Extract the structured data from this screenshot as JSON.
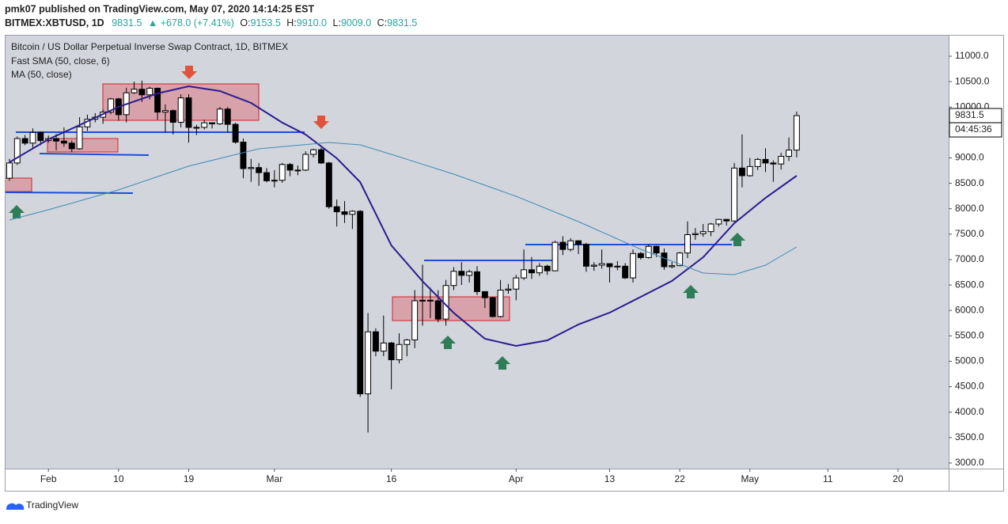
{
  "header": {
    "publisher": "pmk07 published on TradingView.com, May 07, 2020 14:14:25 EST",
    "symbol": "BITMEX:XBTUSD, 1D",
    "last": "9831.5",
    "change": "▲ +678.0 (+7.41%)",
    "o_label": "O:",
    "o": "9153.5",
    "h_label": "H:",
    "h": "9910.0",
    "l_label": "L:",
    "l": "9009.0",
    "c_label": "C:",
    "c": "9831.5"
  },
  "footer": {
    "brand": "TradingView"
  },
  "chart_data": {
    "type": "candlestick",
    "title": "Bitcoin / US Dollar Perpetual Inverse Swap Contract, 1D, BITMEX",
    "x": [
      "2020-01-27",
      "2020-01-28",
      "2020-01-29",
      "2020-01-30",
      "2020-01-31",
      "2020-02-01",
      "2020-02-02",
      "2020-02-03",
      "2020-02-04",
      "2020-02-05",
      "2020-02-06",
      "2020-02-07",
      "2020-02-08",
      "2020-02-09",
      "2020-02-10",
      "2020-02-11",
      "2020-02-12",
      "2020-02-13",
      "2020-02-14",
      "2020-02-15",
      "2020-02-16",
      "2020-02-17",
      "2020-02-18",
      "2020-02-19",
      "2020-02-20",
      "2020-02-21",
      "2020-02-22",
      "2020-02-23",
      "2020-02-24",
      "2020-02-25",
      "2020-02-26",
      "2020-02-27",
      "2020-02-28",
      "2020-02-29",
      "2020-03-01",
      "2020-03-02",
      "2020-03-03",
      "2020-03-04",
      "2020-03-05",
      "2020-03-06",
      "2020-03-07",
      "2020-03-08",
      "2020-03-09",
      "2020-03-10",
      "2020-03-11",
      "2020-03-12",
      "2020-03-13",
      "2020-03-14",
      "2020-03-15",
      "2020-03-16",
      "2020-03-17",
      "2020-03-18",
      "2020-03-19",
      "2020-03-20",
      "2020-03-21",
      "2020-03-22",
      "2020-03-23",
      "2020-03-24",
      "2020-03-25",
      "2020-03-26",
      "2020-03-27",
      "2020-03-28",
      "2020-03-29",
      "2020-03-30",
      "2020-03-31",
      "2020-04-01",
      "2020-04-02",
      "2020-04-03",
      "2020-04-04",
      "2020-04-05",
      "2020-04-06",
      "2020-04-07",
      "2020-04-08",
      "2020-04-09",
      "2020-04-10",
      "2020-04-11",
      "2020-04-12",
      "2020-04-13",
      "2020-04-14",
      "2020-04-15",
      "2020-04-16",
      "2020-04-17",
      "2020-04-18",
      "2020-04-19",
      "2020-04-20",
      "2020-04-21",
      "2020-04-22",
      "2020-04-23",
      "2020-04-24",
      "2020-04-25",
      "2020-04-26",
      "2020-04-27",
      "2020-04-28",
      "2020-04-29",
      "2020-04-30",
      "2020-05-01",
      "2020-05-02",
      "2020-05-03",
      "2020-05-04",
      "2020-05-05",
      "2020-05-06",
      "2020-05-07"
    ],
    "open": [
      8600,
      8900,
      9380,
      9290,
      9500,
      9340,
      9380,
      9330,
      9290,
      9180,
      9610,
      9760,
      9800,
      9900,
      10160,
      9850,
      10280,
      10350,
      10240,
      10370,
      9900,
      9930,
      9700,
      10180,
      9600,
      9600,
      9690,
      9670,
      9960,
      9660,
      9310,
      8790,
      8810,
      8710,
      8550,
      8560,
      8870,
      8760,
      8760,
      9070,
      9160,
      8900,
      8040,
      7940,
      7890,
      7950,
      4360,
      5580,
      5200,
      5360,
      5030,
      5330,
      5420,
      6190,
      6200,
      6190,
      5830,
      6490,
      6770,
      6690,
      6760,
      6370,
      6250,
      5880,
      6400,
      6420,
      6640,
      6800,
      6740,
      6870,
      6780,
      7340,
      7200,
      7370,
      7300,
      6870,
      6890,
      6920,
      6860,
      6870,
      6640,
      7120,
      7040,
      7260,
      7130,
      6860,
      6880,
      7130,
      7490,
      7510,
      7550,
      7700,
      7790,
      7760,
      8800,
      8650,
      8830,
      8970,
      8900,
      8880,
      9030,
      9153.5
    ],
    "high": [
      8980,
      9420,
      9450,
      9580,
      9520,
      9440,
      9470,
      9600,
      9340,
      9800,
      9850,
      9880,
      9950,
      10180,
      10180,
      10380,
      10500,
      10520,
      10400,
      10380,
      10050,
      9950,
      10250,
      10250,
      9650,
      9750,
      9700,
      10000,
      10000,
      9690,
      9380,
      8980,
      8900,
      8800,
      8760,
      8900,
      8900,
      8850,
      9130,
      9180,
      9200,
      8920,
      8180,
      8150,
      7970,
      7970,
      5950,
      5650,
      5900,
      5380,
      5550,
      5440,
      6400,
      6900,
      6450,
      6400,
      6600,
      6850,
      6950,
      6800,
      6870,
      6380,
      6270,
      6600,
      6520,
      6700,
      7200,
      7050,
      6930,
      6900,
      7370,
      7460,
      7420,
      7380,
      7330,
      6950,
      7200,
      6930,
      6970,
      6930,
      7200,
      7150,
      7300,
      7270,
      7220,
      6950,
      7150,
      7750,
      7620,
      7700,
      7720,
      7800,
      7800,
      8900,
      9460,
      9000,
      9000,
      9190,
      8950,
      9100,
      9400,
      9910
    ],
    "low": [
      8550,
      8860,
      9250,
      9200,
      9250,
      9300,
      9150,
      9220,
      9110,
      9160,
      9530,
      9700,
      9670,
      9860,
      9730,
      9700,
      10260,
      10100,
      10150,
      9750,
      9500,
      9460,
      9600,
      9300,
      9450,
      9560,
      9580,
      9650,
      9500,
      9280,
      8600,
      8530,
      8450,
      8520,
      8420,
      8510,
      8640,
      8660,
      8740,
      9010,
      8880,
      8000,
      7650,
      7720,
      7600,
      4300,
      3600,
      5100,
      5100,
      4450,
      4960,
      5100,
      5260,
      5700,
      5850,
      5770,
      5700,
      6400,
      6500,
      6550,
      6300,
      6050,
      5860,
      5860,
      6330,
      6200,
      6600,
      6620,
      6680,
      6700,
      6770,
      7090,
      7160,
      7110,
      6760,
      6780,
      6820,
      6550,
      6790,
      6620,
      6550,
      7000,
      7020,
      7050,
      6800,
      6830,
      6870,
      7030,
      7390,
      7450,
      7460,
      7650,
      7670,
      7740,
      8420,
      8630,
      8760,
      8720,
      8530,
      8770,
      8940,
      9009
    ],
    "close": [
      8900,
      9380,
      9290,
      9500,
      9340,
      9380,
      9330,
      9290,
      9180,
      9610,
      9760,
      9800,
      9900,
      10160,
      9850,
      10280,
      10350,
      10240,
      10370,
      9900,
      9930,
      9700,
      10180,
      9600,
      9600,
      9690,
      9670,
      9960,
      9660,
      9310,
      8790,
      8810,
      8710,
      8550,
      8560,
      8870,
      8760,
      8760,
      9070,
      9160,
      8900,
      8040,
      7940,
      7890,
      7950,
      4360,
      5580,
      5200,
      5360,
      5030,
      5330,
      5420,
      6190,
      6200,
      6190,
      5830,
      6490,
      6770,
      6690,
      6760,
      6370,
      6250,
      5880,
      6400,
      6420,
      6640,
      6800,
      6740,
      6870,
      6780,
      7340,
      7200,
      7370,
      7300,
      6870,
      6890,
      6920,
      6860,
      6870,
      6640,
      7120,
      7040,
      7260,
      7130,
      6860,
      6880,
      7130,
      7490,
      7510,
      7550,
      7700,
      7790,
      7760,
      8800,
      8650,
      8830,
      8970,
      8900,
      8880,
      9030,
      9153.5,
      9831.5
    ],
    "up_color": "#ffffff",
    "down_color": "#000000",
    "border_color": "#000000",
    "overlays": [
      {
        "name": "Fast SMA (50, close, 6)",
        "color": "#2b1c8f",
        "x": [
          "2020-01-27",
          "2020-02-01",
          "2020-02-05",
          "2020-02-10",
          "2020-02-15",
          "2020-02-19",
          "2020-02-23",
          "2020-02-27",
          "2020-03-02",
          "2020-03-05",
          "2020-03-09",
          "2020-03-12",
          "2020-03-16",
          "2020-03-20",
          "2020-03-24",
          "2020-03-28",
          "2020-04-01",
          "2020-04-05",
          "2020-04-09",
          "2020-04-13",
          "2020-04-17",
          "2020-04-21",
          "2020-04-25",
          "2020-04-29",
          "2020-05-03",
          "2020-05-07"
        ],
        "values": [
          8914,
          9366,
          9646,
          10004,
          10268,
          10408,
          10315,
          10082,
          9693,
          9459,
          8992,
          8525,
          7280,
          6575,
          5953,
          5443,
          5303,
          5412,
          5724,
          5957,
          6268,
          6580,
          7046,
          7716,
          8214,
          8650
        ]
      },
      {
        "name": "MA (50, close)",
        "color": "#3d8bb8",
        "x": [
          "2020-01-27",
          "2020-02-01",
          "2020-02-10",
          "2020-02-19",
          "2020-02-28",
          "2020-03-08",
          "2020-03-12",
          "2020-03-16",
          "2020-03-24",
          "2020-04-01",
          "2020-04-09",
          "2020-04-17",
          "2020-04-25",
          "2020-04-29",
          "2020-05-03",
          "2020-05-07"
        ],
        "values": [
          7778,
          7980,
          8370,
          8837,
          9179,
          9303,
          9257,
          9070,
          8681,
          8245,
          7747,
          7202,
          6735,
          6704,
          6891,
          7249
        ]
      }
    ],
    "xlim": [
      "2020-01-26T12:00:00Z",
      "2020-05-26T12:00:00Z"
    ],
    "xticks": [
      {
        "value": "2020-02-01",
        "label": "Feb"
      },
      {
        "value": "2020-02-10",
        "label": "10"
      },
      {
        "value": "2020-02-19",
        "label": "19"
      },
      {
        "value": "2020-03-01",
        "label": "Mar"
      },
      {
        "value": "2020-03-16",
        "label": "16"
      },
      {
        "value": "2020-04-01",
        "label": "Apr"
      },
      {
        "value": "2020-04-13",
        "label": "13"
      },
      {
        "value": "2020-04-22",
        "label": "22"
      },
      {
        "value": "2020-05-01",
        "label": "May"
      },
      {
        "value": "2020-05-11",
        "label": "11"
      },
      {
        "value": "2020-05-20",
        "label": "20"
      }
    ],
    "ylim": [
      2890,
      11420
    ],
    "yticks": [
      {
        "value": 3000,
        "label": "3000.0"
      },
      {
        "value": 3500,
        "label": "3500.0"
      },
      {
        "value": 4000,
        "label": "4000.0"
      },
      {
        "value": 4500,
        "label": "4500.0"
      },
      {
        "value": 5000,
        "label": "5000.0"
      },
      {
        "value": 5500,
        "label": "5500.0"
      },
      {
        "value": 6000,
        "label": "6000.0"
      },
      {
        "value": 6500,
        "label": "6500.0"
      },
      {
        "value": 7000,
        "label": "7000.0"
      },
      {
        "value": 7500,
        "label": "7500.0"
      },
      {
        "value": 8000,
        "label": "8000.0"
      },
      {
        "value": 8500,
        "label": "8500.0"
      },
      {
        "value": 9000,
        "label": "9000.0"
      },
      {
        "value": 9500,
        "label": "9500.0"
      },
      {
        "value": 10000,
        "label": "10000.0"
      },
      {
        "value": 10500,
        "label": "10500.0"
      },
      {
        "value": 11000,
        "label": "11000.0"
      }
    ],
    "price_label": {
      "value": 9831.5,
      "label": "9831.5"
    },
    "countdown": "04:45:36",
    "grid": false
  }
}
